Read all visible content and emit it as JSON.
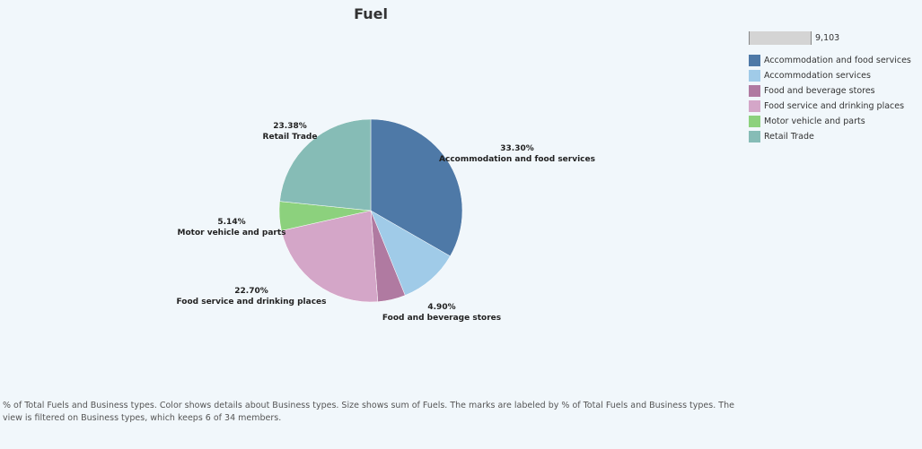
{
  "chart_data": {
    "type": "pie",
    "title": "Fuel",
    "slices": [
      {
        "label": "Accommodation and food services",
        "value": 33.3,
        "display": "33.30%",
        "color": "#4e79a7"
      },
      {
        "label": "Accommodation services",
        "value": 10.58,
        "display": "",
        "color": "#a0cbe8"
      },
      {
        "label": "Food and beverage stores",
        "value": 4.9,
        "display": "4.90%",
        "color": "#b07aa1"
      },
      {
        "label": "Food service and drinking places",
        "value": 22.7,
        "display": "22.70%",
        "color": "#d4a6c8"
      },
      {
        "label": "Motor vehicle and parts",
        "value": 5.14,
        "display": "5.14%",
        "color": "#8cd17d"
      },
      {
        "label": "Retail Trade",
        "value": 23.38,
        "display": "23.38%",
        "color": "#86bcb6"
      }
    ]
  },
  "legend": {
    "size_value": "9,103",
    "items": [
      {
        "label": "Accommodation and food services",
        "color": "#4e79a7"
      },
      {
        "label": "Accommodation services",
        "color": "#a0cbe8"
      },
      {
        "label": "Food and beverage stores",
        "color": "#b07aa1"
      },
      {
        "label": "Food service and drinking places",
        "color": "#d4a6c8"
      },
      {
        "label": "Motor vehicle and parts",
        "color": "#8cd17d"
      },
      {
        "label": "Retail Trade",
        "color": "#86bcb6"
      }
    ]
  },
  "footer": {
    "caption": "% of Total Fuels and Business types.  Color shows details about Business types.  Size shows sum of Fuels.  The marks are labeled by % of Total Fuels and Business types. The view is filtered on Business types, which keeps 6 of 34 members."
  }
}
